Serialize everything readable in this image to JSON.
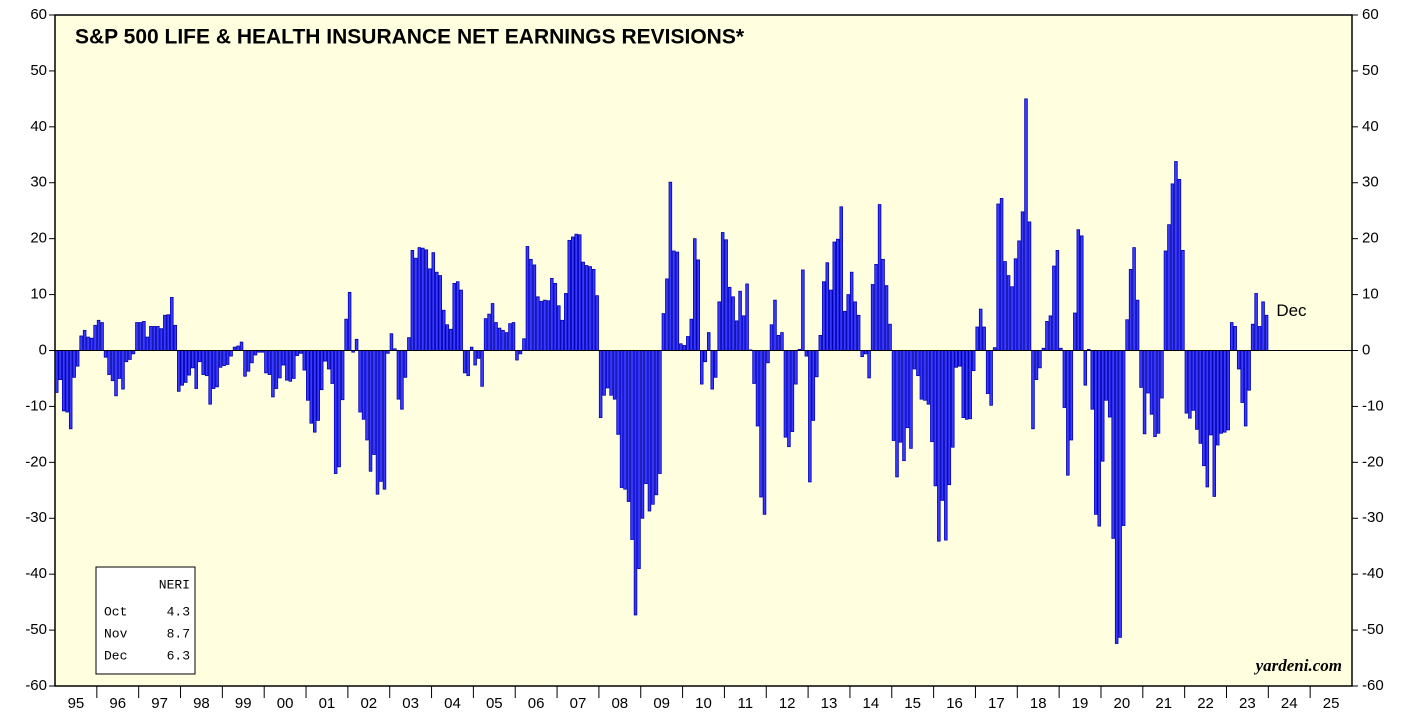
{
  "chart_data": {
    "type": "bar",
    "title": "S&P 500 LIFE & HEALTH INSURANCE NET EARNINGS REVISIONS*",
    "x_labels": [
      "95",
      "96",
      "97",
      "98",
      "99",
      "00",
      "01",
      "02",
      "03",
      "04",
      "05",
      "06",
      "07",
      "08",
      "09",
      "10",
      "11",
      "12",
      "13",
      "14",
      "15",
      "16",
      "17",
      "18",
      "19",
      "20",
      "21",
      "22",
      "23",
      "24",
      "25"
    ],
    "color": "#3a3aff",
    "ylim": [
      -60,
      60
    ],
    "yticks": [
      -60,
      -50,
      -40,
      -30,
      -20,
      -10,
      0,
      10,
      20,
      30,
      40,
      50,
      60
    ],
    "values": [
      -7.5,
      -5.2,
      -10.8,
      -11,
      -14,
      -4.8,
      -2.8,
      2.6,
      3.6,
      2.4,
      2.2,
      4.5,
      5.4,
      5,
      -1.2,
      -4.3,
      -5.4,
      -8.1,
      -5,
      -6.9,
      -2,
      -1.6,
      -0.6,
      5,
      5,
      5.2,
      2.4,
      4.3,
      4.3,
      4.3,
      3.9,
      6.3,
      6.4,
      9.5,
      4.5,
      -7.3,
      -6.2,
      -5.7,
      -4.4,
      -3.1,
      -6.8,
      -2,
      -4.3,
      -4.5,
      -9.6,
      -6.8,
      -6.5,
      -3,
      -2.7,
      -2.5,
      -1,
      0.6,
      0.8,
      1.5,
      -4.6,
      -3.7,
      -2.2,
      -0.8,
      -0.3,
      -0.3,
      -4,
      -4.3,
      -8.3,
      -6.8,
      -4.9,
      -2.6,
      -5.3,
      -5.5,
      -5,
      -0.9,
      -0.5,
      -3.5,
      -8.9,
      -13,
      -14.6,
      -12.5,
      -7,
      -1.9,
      -3.3,
      -5.9,
      -22,
      -20.8,
      -8.8,
      5.6,
      10.4,
      -0.3,
      2,
      -11,
      -12.3,
      -16,
      -21.6,
      -18.6,
      -25.7,
      -23.4,
      -24.8,
      -0.5,
      3,
      0.3,
      -8.7,
      -10.5,
      -4.8,
      2.3,
      17.9,
      16.5,
      18.4,
      18.3,
      18,
      14.6,
      17.5,
      14,
      13.4,
      7.2,
      4.6,
      3.8,
      12,
      12.3,
      10.8,
      -4,
      -4.5,
      0.6,
      -2.6,
      -1.4,
      -6.4,
      5.7,
      6.5,
      8.4,
      5,
      4,
      3.6,
      3.2,
      4.8,
      5,
      -1.7,
      -0.6,
      2.1,
      18.6,
      16.3,
      15.3,
      9.6,
      8.8,
      9,
      8.9,
      12.9,
      12,
      8,
      5.4,
      10.2,
      19.7,
      20.3,
      20.8,
      20.7,
      15.8,
      15.2,
      15,
      14.5,
      9.8,
      -12,
      -8,
      -6.7,
      -8,
      -8.7,
      -15,
      -24.5,
      -24.8,
      -27,
      -33.8,
      -47.3,
      -39,
      -30,
      -23.8,
      -28.7,
      -27.5,
      -25.8,
      -22,
      6.6,
      12.8,
      30.1,
      17.8,
      17.6,
      1.2,
      0.9,
      2.5,
      5.6,
      20,
      16.2,
      -6,
      -2,
      3.2,
      -6.9,
      -4.8,
      8.7,
      21.1,
      19.8,
      11.3,
      9.6,
      5.3,
      10.6,
      6.2,
      11.9,
      0.1,
      -5.9,
      -13.5,
      -26.2,
      -29.3,
      -2.2,
      4.6,
      9,
      2.7,
      3.2,
      -15.5,
      -17.2,
      -14.5,
      -6,
      0.2,
      14.4,
      -1,
      -23.5,
      -12.5,
      -4.7,
      2.7,
      12.3,
      15.7,
      10.8,
      19.4,
      19.9,
      25.7,
      7,
      10,
      14,
      8.7,
      6.3,
      -1.1,
      -0.6,
      -4.9,
      11.8,
      15.4,
      26.1,
      16.3,
      11.6,
      4.7,
      -16.1,
      -22.6,
      -16.4,
      -19.7,
      -13.8,
      -17.5,
      -3.3,
      -4.5,
      -8.7,
      -8.9,
      -9.6,
      -16.3,
      -24.2,
      -34.1,
      -26.8,
      -33.9,
      -24,
      -17.3,
      -3,
      -2.8,
      -12,
      -12.3,
      -12.2,
      -3.6,
      4.2,
      7.4,
      4.2,
      -7.7,
      -9.8,
      0.5,
      26.2,
      27.2,
      15.9,
      13.4,
      11.4,
      16.4,
      19.6,
      24.8,
      45,
      23,
      -14,
      -5.2,
      -3.1,
      0.4,
      5.2,
      6.2,
      15.1,
      17.9,
      0.4,
      -10.2,
      -22.3,
      -16,
      6.7,
      21.6,
      20.5,
      -6.2,
      0.2,
      -10.5,
      -29.3,
      -31.4,
      -19.8,
      -8.9,
      -11.9,
      -33.6,
      -52.4,
      -51.3,
      -31.3,
      5.5,
      14.5,
      18.4,
      9,
      -6.6,
      -14.9,
      -7.6,
      -11.4,
      -15.4,
      -14.8,
      -8.5,
      17.8,
      22.5,
      29.8,
      33.8,
      30.6,
      17.9,
      -11.2,
      -12.1,
      -10.7,
      -14.1,
      -16.6,
      -20.6,
      -24.4,
      -15.1,
      -26.1,
      -16.9,
      -14.8,
      -14.6,
      -14.2,
      5,
      4.3,
      -3.3,
      -9.3,
      -13.5,
      -7.1,
      4.7,
      10.2,
      4.3,
      8.7,
      6.3
    ],
    "annotation": "Dec",
    "source": "yardeni.com",
    "box": {
      "header": "NERI",
      "rows": [
        [
          "Oct",
          "4.3"
        ],
        [
          "Nov",
          "8.7"
        ],
        [
          "Dec",
          "6.3"
        ]
      ]
    }
  }
}
